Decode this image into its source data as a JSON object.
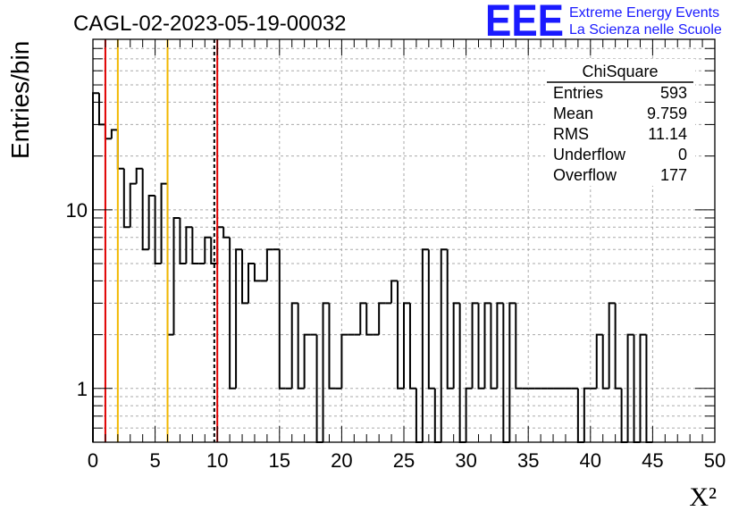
{
  "chart_data": {
    "type": "bar",
    "title": "CAGL-02-2023-05-19-00032",
    "xlabel": "X²",
    "ylabel": "Entries/bin",
    "xlim": [
      0,
      50
    ],
    "ylim": [
      0.5,
      90
    ],
    "yscale": "log",
    "grid": true,
    "bin_width": 0.5,
    "x_ticks": [
      "0",
      "5",
      "10",
      "15",
      "20",
      "25",
      "30",
      "35",
      "40",
      "45",
      "50"
    ],
    "y_ticks": [
      "1",
      "10"
    ],
    "bin_contents": [
      45,
      30,
      25,
      28,
      17,
      8,
      14,
      17,
      6,
      12,
      5,
      14,
      2,
      9,
      5,
      8,
      5,
      5,
      7,
      5,
      8,
      7,
      1,
      6,
      3,
      5,
      4,
      4,
      6,
      6,
      1,
      1,
      3,
      1,
      2,
      2,
      0,
      3,
      1,
      1,
      2,
      2,
      2,
      3,
      2,
      2,
      3,
      3,
      4,
      1,
      3,
      1,
      0,
      6,
      1,
      0,
      6,
      1,
      3,
      0,
      1,
      3,
      1,
      3,
      1,
      3,
      0,
      3,
      1,
      1,
      1,
      1,
      1,
      1,
      1,
      1,
      1,
      1,
      0,
      1,
      1,
      2,
      1,
      3,
      1,
      0,
      2,
      0,
      2,
      0
    ],
    "vertical_lines": [
      {
        "x": 1,
        "color": "#e00000",
        "style": "solid"
      },
      {
        "x": 2,
        "color": "#f2b800",
        "style": "solid"
      },
      {
        "x": 6,
        "color": "#f2b800",
        "style": "solid"
      },
      {
        "x": 9.759,
        "color": "#000000",
        "style": "dashed"
      },
      {
        "x": 10,
        "color": "#e00000",
        "style": "solid"
      }
    ],
    "stats_box": {
      "title": "ChiSquare",
      "rows": [
        {
          "label": "Entries",
          "value": "593"
        },
        {
          "label": "Mean",
          "value": "9.759"
        },
        {
          "label": "RMS",
          "value": "11.14"
        },
        {
          "label": "Underflow",
          "value": "0"
        },
        {
          "label": "Overflow",
          "value": "177"
        }
      ]
    }
  },
  "logo": {
    "mark": "EEE",
    "line1": "Extreme Energy Events",
    "line2": "La Scienza nelle Scuole",
    "color": "#1a1aff"
  }
}
